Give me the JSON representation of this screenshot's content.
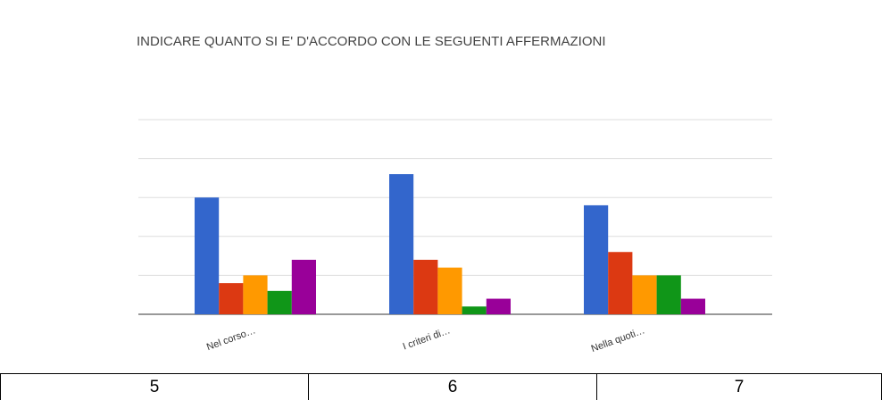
{
  "chart_data": {
    "type": "bar",
    "title": "INDICARE QUANTO SI E' D'ACCORDO CON LE SEGUENTI AFFERMAZIONI",
    "categories": [
      "Nel corso…",
      "I criteri di…",
      "Nella quoti…"
    ],
    "series": [
      {
        "color": "#3366cc",
        "values": [
          15,
          18,
          14
        ]
      },
      {
        "color": "#dc3912",
        "values": [
          4,
          7,
          8
        ]
      },
      {
        "color": "#ff9900",
        "values": [
          5,
          6,
          5
        ]
      },
      {
        "color": "#109618",
        "values": [
          3,
          1,
          5
        ]
      },
      {
        "color": "#990099",
        "values": [
          7,
          2,
          2
        ]
      }
    ],
    "ylim": [
      0,
      25
    ],
    "yticks": [
      0,
      5,
      10,
      15,
      20,
      25
    ],
    "grid": true
  },
  "table": {
    "rows": [
      [
        5,
        6,
        7
      ]
    ]
  }
}
